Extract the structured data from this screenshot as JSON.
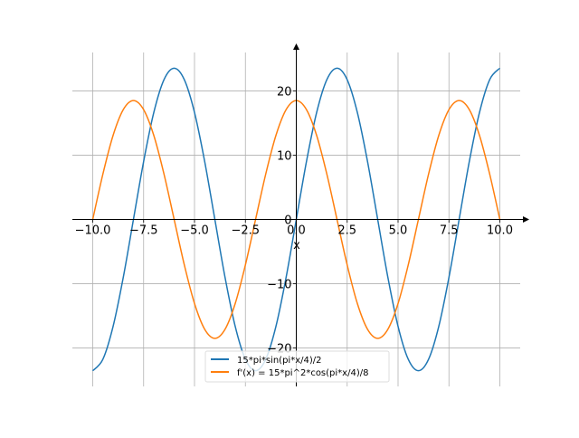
{
  "chart_data": {
    "type": "line",
    "title": "",
    "xlabel": "x",
    "ylabel": "",
    "xlim": [
      -11,
      11
    ],
    "ylim": [
      -26,
      26
    ],
    "grid": true,
    "legend_placement": "lower-center",
    "x_ticks": [
      -10,
      -7.5,
      -5,
      -2.5,
      0,
      2.5,
      5,
      7.5,
      10
    ],
    "x_tick_labels": [
      "−10.0",
      "−7.5",
      "−5.0",
      "−2.5",
      "0.0",
      "2.5",
      "5.0",
      "7.5",
      "10.0"
    ],
    "y_ticks": [
      -20,
      -10,
      0,
      10,
      20
    ],
    "y_tick_labels": [
      "−20",
      "−10",
      "0",
      "10",
      "20"
    ],
    "x": [
      -10,
      -9.5,
      -9,
      -8.5,
      -8,
      -7.5,
      -7,
      -6.5,
      -6,
      -5.5,
      -5,
      -4.5,
      -4,
      -3.5,
      -3,
      -2.5,
      -2,
      -1.5,
      -1,
      -0.5,
      0,
      0.5,
      1,
      1.5,
      2,
      2.5,
      3,
      3.5,
      4,
      4.5,
      5,
      5.5,
      6,
      6.5,
      7,
      7.5,
      8,
      8.5,
      9,
      9.5,
      10
    ],
    "series": [
      {
        "name": "15*pi*sin(pi*x/4)/2",
        "color": "#1f77b4",
        "values": [
          -23.56,
          -21.77,
          -16.66,
          -9.02,
          0,
          9.02,
          16.66,
          21.77,
          23.56,
          21.77,
          16.66,
          9.02,
          0,
          -9.02,
          -16.66,
          -21.77,
          -23.56,
          -21.77,
          -16.66,
          -9.02,
          0,
          9.02,
          16.66,
          21.77,
          23.56,
          21.77,
          16.66,
          9.02,
          0,
          -9.02,
          -16.66,
          -21.77,
          -23.56,
          -21.77,
          -16.66,
          -9.02,
          0,
          9.02,
          16.66,
          21.77,
          23.56
        ]
      },
      {
        "name": "f'(x) = 15*pi^2*cos(pi*x/4)/8",
        "color": "#ff7f0e",
        "values": [
          0,
          7.08,
          13.09,
          17.1,
          18.51,
          17.1,
          13.09,
          7.08,
          0,
          -7.08,
          -13.09,
          -17.1,
          -18.51,
          -17.1,
          -13.09,
          -7.08,
          0,
          7.08,
          13.09,
          17.1,
          18.51,
          17.1,
          13.09,
          7.08,
          0,
          -7.08,
          -13.09,
          -17.1,
          -18.51,
          -17.1,
          -13.09,
          -7.08,
          0,
          7.08,
          13.09,
          17.1,
          18.51,
          17.1,
          13.09,
          7.08,
          0
        ]
      }
    ]
  }
}
